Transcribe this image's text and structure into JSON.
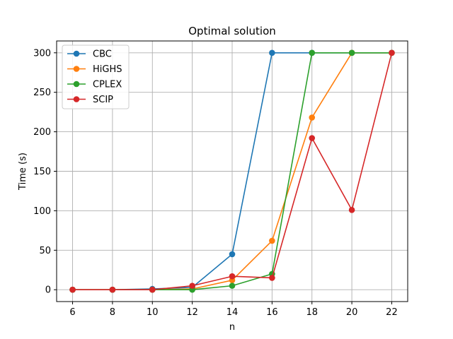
{
  "chart_data": {
    "type": "line",
    "title": "Optimal solution",
    "xlabel": "n",
    "ylabel": "Time (s)",
    "x": [
      6,
      8,
      10,
      12,
      14,
      16,
      18,
      20,
      22
    ],
    "xticks": [
      "6",
      "8",
      "10",
      "12",
      "14",
      "16",
      "18",
      "20",
      "22"
    ],
    "yticks": [
      "0",
      "50",
      "100",
      "150",
      "200",
      "250",
      "300"
    ],
    "ytick_values": [
      0,
      50,
      100,
      150,
      200,
      250,
      300
    ],
    "xlim": [
      5.2,
      22.8
    ],
    "ylim": [
      -15,
      315
    ],
    "grid": true,
    "legend_position": "top-left",
    "series": [
      {
        "name": "CBC",
        "color": "#1f77b4",
        "values": [
          0,
          0,
          1,
          3,
          45,
          300,
          300,
          300,
          300
        ]
      },
      {
        "name": "HiGHS",
        "color": "#ff7f0e",
        "values": [
          0,
          0,
          0,
          1,
          12,
          62,
          218,
          300,
          300
        ]
      },
      {
        "name": "CPLEX",
        "color": "#2ca02c",
        "values": [
          0,
          0,
          0,
          0,
          5,
          20,
          300,
          300,
          300
        ]
      },
      {
        "name": "SCIP",
        "color": "#d62728",
        "values": [
          0,
          0,
          0,
          5,
          17,
          15,
          192,
          101,
          300
        ]
      }
    ]
  }
}
